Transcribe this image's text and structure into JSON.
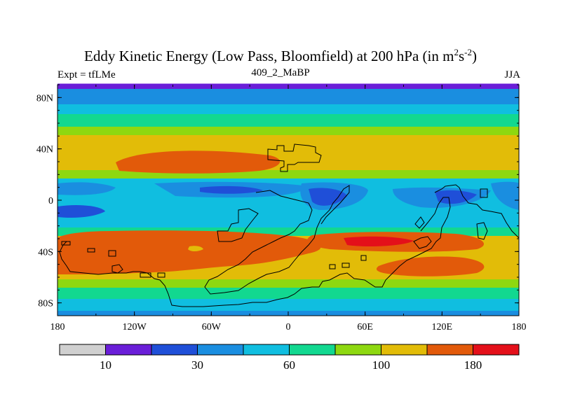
{
  "header": {
    "title_main": "Eddy Kinetic Energy (Low Pass, Bloomfield) at 200 hPa (in m",
    "title_sup1": "2",
    "title_mid": "s",
    "title_sup2": "-2",
    "title_end": ")",
    "experiment": "Expt = tfLMe",
    "case_id": "409_2_MaBP",
    "season": "JJA"
  },
  "axes": {
    "lat_labels": [
      "80N",
      "40N",
      "0",
      "40S",
      "80S"
    ],
    "lat_values": [
      80,
      40,
      0,
      -40,
      -80
    ],
    "lon_labels": [
      "180",
      "120W",
      "60W",
      "0",
      "60E",
      "120E",
      "180"
    ],
    "lon_values": [
      -180,
      -120,
      -60,
      0,
      60,
      120,
      180
    ]
  },
  "colorbar": {
    "colors": [
      "#d0d0d0",
      "#6a1ed8",
      "#1f4fd8",
      "#1a8ee0",
      "#10bee0",
      "#12d890",
      "#8ed810",
      "#e2bc08",
      "#e25a0a",
      "#e4101a"
    ],
    "labels": [
      "10",
      "30",
      "60",
      "100",
      "180"
    ]
  },
  "field": {
    "description_colors": {
      "low": "#1f4fd8",
      "lowmid": "#1a8ee0",
      "mid": "#10bee0",
      "midhigh": "#12d890",
      "green": "#8ed810",
      "yellow": "#e2bc08",
      "orange": "#e25a0a",
      "red": "#e4101a"
    }
  }
}
